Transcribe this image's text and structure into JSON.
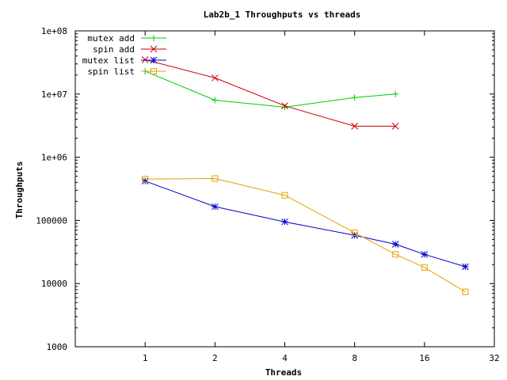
{
  "chart_data": {
    "type": "line",
    "title": "Lab2b_1 Throughputs vs threads",
    "xlabel": "Threads",
    "ylabel": "Throughputs",
    "x_scale": "log2",
    "y_scale": "log10",
    "xlim": [
      0.5,
      32
    ],
    "ylim": [
      1000,
      100000000
    ],
    "x_ticks": [
      1,
      2,
      4,
      8,
      16,
      32
    ],
    "x_tick_labels": [
      "1",
      "2",
      "4",
      "8",
      "16",
      "32"
    ],
    "y_ticks": [
      1000,
      10000,
      100000,
      1000000,
      10000000,
      100000000
    ],
    "y_tick_labels": [
      "1000",
      "10000",
      "100000",
      "1e+06",
      "1e+07",
      "1e+08"
    ],
    "grid": false,
    "legend_position": "top-left",
    "series": [
      {
        "name": "mutex add",
        "color": "#00cc00",
        "marker": "plus",
        "x": [
          1,
          2,
          4,
          8,
          12
        ],
        "y": [
          23000000,
          8000000,
          6200000,
          8800000,
          10000000
        ]
      },
      {
        "name": "spin add",
        "color": "#cc0000",
        "marker": "cross",
        "x": [
          1,
          2,
          4,
          8,
          12
        ],
        "y": [
          35000000,
          18000000,
          6500000,
          3100000,
          3100000
        ]
      },
      {
        "name": "mutex list",
        "color": "#0000cc",
        "marker": "star",
        "x": [
          1,
          2,
          4,
          8,
          12,
          16,
          24
        ],
        "y": [
          420000,
          165000,
          95000,
          58000,
          42000,
          29000,
          18500
        ]
      },
      {
        "name": "spin list",
        "color": "#e6a000",
        "marker": "square",
        "x": [
          1,
          2,
          4,
          8,
          12,
          16,
          24
        ],
        "y": [
          450000,
          460000,
          250000,
          64000,
          29000,
          18000,
          7400
        ]
      }
    ]
  }
}
